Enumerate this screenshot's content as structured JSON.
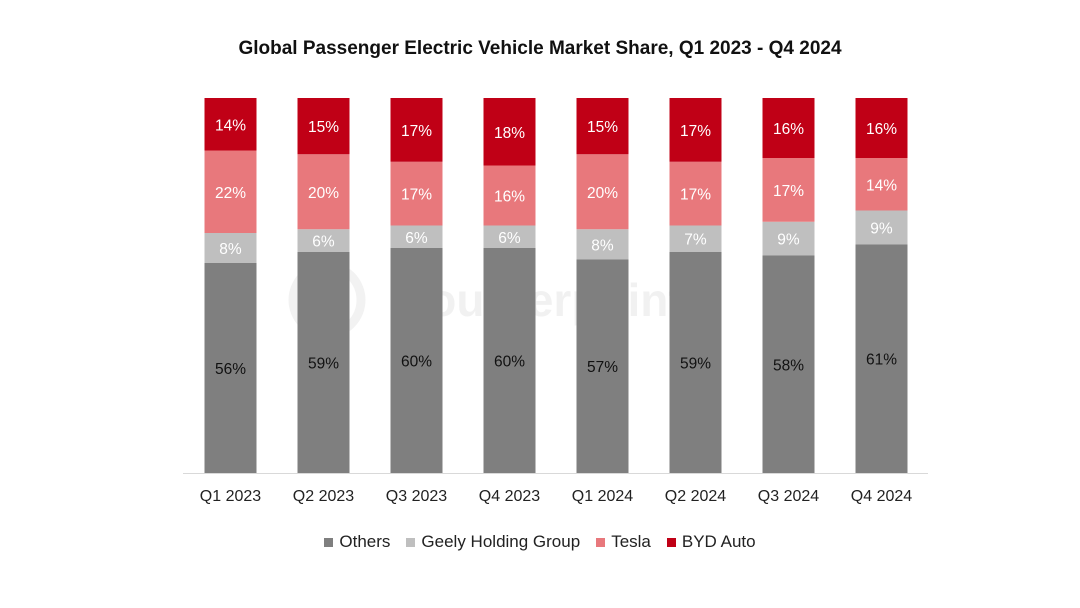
{
  "chart_data": {
    "type": "bar",
    "stacked": true,
    "title": "Global Passenger Electric Vehicle Market Share, Q1 2023 - Q4 2024",
    "xlabel": "",
    "ylabel": "",
    "ylim": [
      0,
      100
    ],
    "grid": false,
    "legend_position": "bottom",
    "categories": [
      "Q1 2023",
      "Q2 2023",
      "Q3 2023",
      "Q4 2023",
      "Q1 2024",
      "Q2 2024",
      "Q3 2024",
      "Q4 2024"
    ],
    "series": [
      {
        "name": "Others",
        "color": "#7f7f7f",
        "label_color": "#111111",
        "values": [
          56,
          59,
          60,
          60,
          57,
          59,
          58,
          61
        ],
        "labels": [
          "56%",
          "59%",
          "60%",
          "60%",
          "57%",
          "59%",
          "58%",
          "61%"
        ]
      },
      {
        "name": "Geely Holding Group",
        "color": "#bfbfbf",
        "label_color": "#ffffff",
        "values": [
          8,
          6,
          6,
          6,
          8,
          7,
          9,
          9
        ],
        "labels": [
          "8%",
          "6%",
          "6%",
          "6%",
          "8%",
          "7%",
          "9%",
          "9%"
        ]
      },
      {
        "name": "Tesla",
        "color": "#e8787c",
        "label_color": "#ffffff",
        "values": [
          22,
          20,
          17,
          16,
          20,
          17,
          17,
          14
        ],
        "labels": [
          "22%",
          "20%",
          "17%",
          "16%",
          "20%",
          "17%",
          "17%",
          "14%"
        ]
      },
      {
        "name": "BYD Auto",
        "color": "#c00016",
        "label_color": "#ffffff",
        "values": [
          14,
          15,
          17,
          18,
          15,
          17,
          16,
          16
        ],
        "labels": [
          "14%",
          "15%",
          "17%",
          "18%",
          "15%",
          "17%",
          "16%",
          "16%"
        ]
      }
    ]
  },
  "watermark": {
    "text": "Counterpoint",
    "icon": "counterpoint-logo-icon"
  }
}
